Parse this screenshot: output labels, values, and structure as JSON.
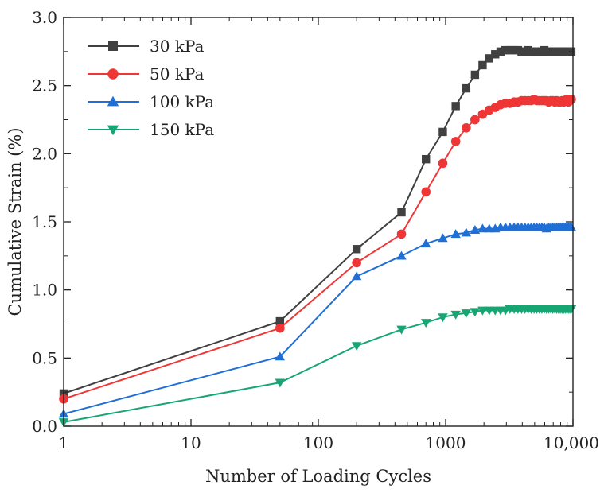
{
  "chart_data": {
    "type": "line",
    "title": "",
    "xlabel": "Number of Loading Cycles",
    "ylabel": "Cumulative Strain (%)",
    "xscale": "log",
    "xlim": [
      1,
      10000
    ],
    "ylim": [
      0,
      3.0
    ],
    "x_ticks": [
      1,
      10,
      100,
      1000,
      10000
    ],
    "x_tick_labels": [
      "1",
      "10",
      "100",
      "1000",
      "10,000"
    ],
    "y_ticks": [
      0,
      0.5,
      1.0,
      1.5,
      2.0,
      2.5,
      3.0
    ],
    "y_tick_labels": [
      "0.0",
      "0.5",
      "1.0",
      "1.5",
      "2.0",
      "2.5",
      "3.0"
    ],
    "legend_position": "top-left",
    "grid": false,
    "series": [
      {
        "name": "30 kPa",
        "color": "#404040",
        "marker": "square",
        "x": [
          1,
          50,
          200,
          450,
          700,
          950,
          1200,
          1450,
          1700,
          1950,
          2200,
          2450,
          2700,
          2950,
          3200,
          3450,
          3700,
          3950,
          4200,
          4450,
          4700,
          4950,
          5200,
          5450,
          5700,
          5950,
          6200,
          6450,
          6700,
          6950,
          7200,
          7450,
          7700,
          7950,
          8200,
          8450,
          8700,
          8950,
          9200,
          9450,
          9700
        ],
        "y": [
          0.24,
          0.77,
          1.3,
          1.57,
          1.96,
          2.16,
          2.35,
          2.48,
          2.58,
          2.65,
          2.7,
          2.73,
          2.75,
          2.76,
          2.76,
          2.76,
          2.76,
          2.75,
          2.75,
          2.76,
          2.75,
          2.75,
          2.75,
          2.75,
          2.75,
          2.76,
          2.75,
          2.75,
          2.75,
          2.75,
          2.75,
          2.75,
          2.75,
          2.75,
          2.75,
          2.75,
          2.75,
          2.75,
          2.75,
          2.75,
          2.75
        ]
      },
      {
        "name": "50 kPa",
        "color": "#ef3535",
        "marker": "circle",
        "x": [
          1,
          50,
          200,
          450,
          700,
          950,
          1200,
          1450,
          1700,
          1950,
          2200,
          2450,
          2700,
          2950,
          3200,
          3450,
          3700,
          3950,
          4200,
          4450,
          4700,
          4950,
          5200,
          5450,
          5700,
          5950,
          6200,
          6450,
          6700,
          6950,
          7200,
          7450,
          7700,
          7950,
          8200,
          8450,
          8700,
          8950,
          9200,
          9450,
          9700
        ],
        "y": [
          0.2,
          0.72,
          1.2,
          1.41,
          1.72,
          1.93,
          2.09,
          2.19,
          2.25,
          2.29,
          2.32,
          2.34,
          2.36,
          2.37,
          2.37,
          2.38,
          2.38,
          2.39,
          2.39,
          2.39,
          2.39,
          2.4,
          2.39,
          2.39,
          2.39,
          2.39,
          2.39,
          2.38,
          2.39,
          2.39,
          2.38,
          2.39,
          2.38,
          2.38,
          2.39,
          2.38,
          2.39,
          2.4,
          2.38,
          2.39,
          2.4
        ]
      },
      {
        "name": "100 kPa",
        "color": "#1f6fd6",
        "marker": "triangle-up",
        "x": [
          1,
          50,
          200,
          450,
          700,
          950,
          1200,
          1450,
          1700,
          1950,
          2200,
          2450,
          2700,
          2950,
          3200,
          3450,
          3700,
          3950,
          4200,
          4450,
          4700,
          4950,
          5200,
          5450,
          5700,
          5950,
          6200,
          6450,
          6700,
          6950,
          7200,
          7450,
          7700,
          7950,
          8200,
          8450,
          8700,
          8950,
          9200,
          9450,
          9700
        ],
        "y": [
          0.09,
          0.51,
          1.1,
          1.25,
          1.34,
          1.38,
          1.41,
          1.42,
          1.44,
          1.45,
          1.45,
          1.45,
          1.46,
          1.46,
          1.46,
          1.46,
          1.46,
          1.46,
          1.46,
          1.46,
          1.46,
          1.46,
          1.46,
          1.46,
          1.46,
          1.46,
          1.45,
          1.46,
          1.46,
          1.46,
          1.46,
          1.46,
          1.46,
          1.46,
          1.46,
          1.46,
          1.46,
          1.46,
          1.46,
          1.46,
          1.46
        ]
      },
      {
        "name": "150 kPa",
        "color": "#17a673",
        "marker": "triangle-down",
        "x": [
          1,
          50,
          200,
          450,
          700,
          950,
          1200,
          1450,
          1700,
          1950,
          2200,
          2450,
          2700,
          2950,
          3200,
          3450,
          3700,
          3950,
          4200,
          4450,
          4700,
          4950,
          5200,
          5450,
          5700,
          5950,
          6200,
          6450,
          6700,
          6950,
          7200,
          7450,
          7700,
          7950,
          8200,
          8450,
          8700,
          8950,
          9200,
          9450,
          9700
        ],
        "y": [
          0.03,
          0.32,
          0.59,
          0.71,
          0.76,
          0.8,
          0.82,
          0.83,
          0.84,
          0.85,
          0.85,
          0.85,
          0.85,
          0.85,
          0.86,
          0.86,
          0.86,
          0.86,
          0.86,
          0.86,
          0.86,
          0.86,
          0.86,
          0.86,
          0.86,
          0.86,
          0.86,
          0.86,
          0.86,
          0.86,
          0.86,
          0.86,
          0.86,
          0.86,
          0.86,
          0.86,
          0.86,
          0.86,
          0.86,
          0.86,
          0.86
        ]
      }
    ]
  }
}
